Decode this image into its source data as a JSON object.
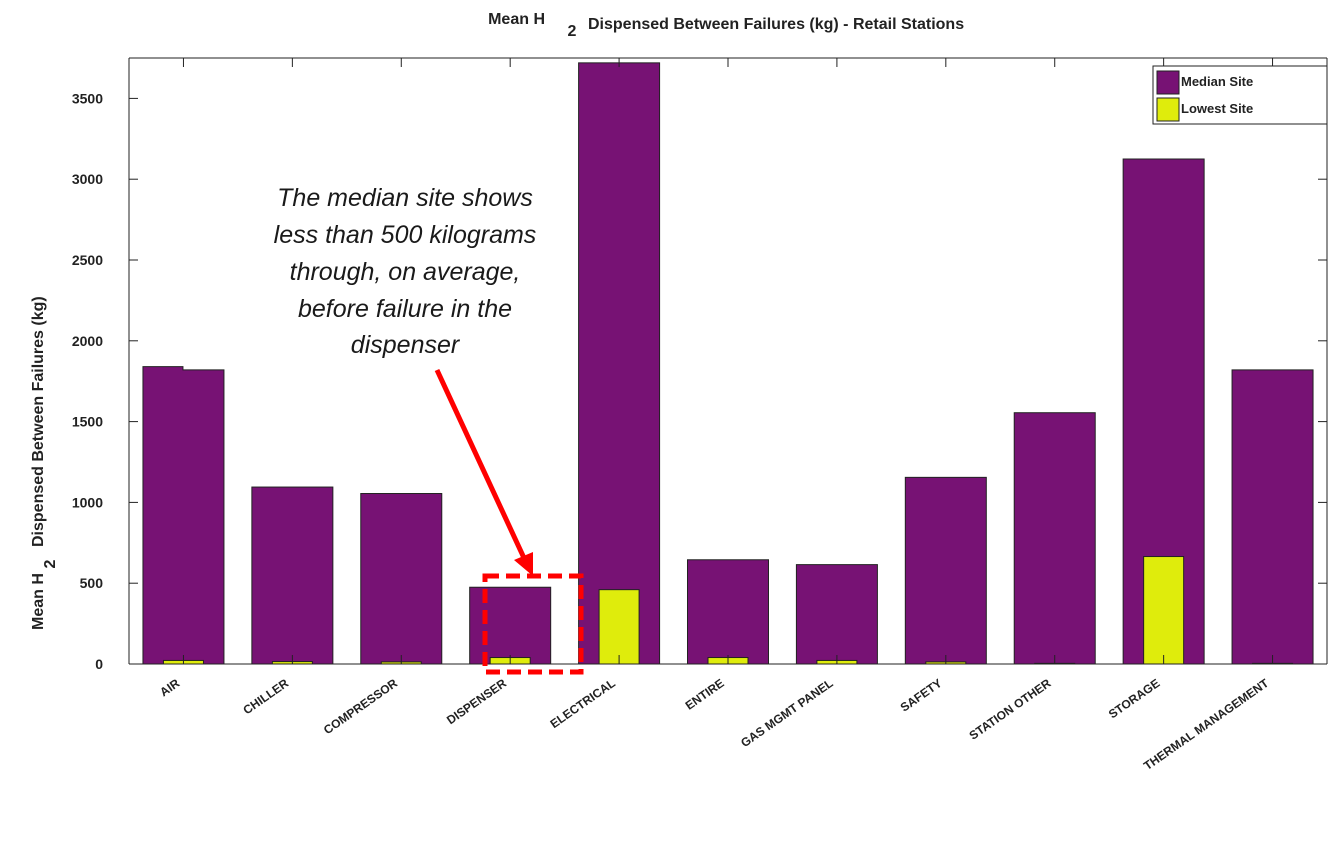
{
  "chart_data": {
    "type": "bar",
    "title_main": "Mean H",
    "title_sub": "2",
    "title_rest": "Dispensed Between Failures (kg) - Retail Stations",
    "ylabel_main": "Mean H",
    "ylabel_sub": "2",
    "ylabel_rest": "Dispensed Between Failures (kg)",
    "xlabel": "",
    "ylim": [
      0,
      3750
    ],
    "yticks": [
      "0",
      "500",
      "1000",
      "1500",
      "2000",
      "2500",
      "3000",
      "3500"
    ],
    "categories": [
      "AIR",
      "CHILLER",
      "COMPRESSOR",
      "DISPENSER",
      "ELECTRICAL",
      "ENTIRE",
      "GAS MGMT PANEL",
      "SAFETY",
      "STATION OTHER",
      "STORAGE",
      "THERMAL MANAGEMENT"
    ],
    "series": [
      {
        "name": "Median Site",
        "color": "#771274",
        "values": [
          1820,
          1095,
          1055,
          475,
          3720,
          645,
          615,
          1155,
          1555,
          3125,
          1820
        ]
      },
      {
        "name": "Lowest Site",
        "color": "#dfec0c",
        "values": [
          22,
          15,
          13,
          40,
          460,
          40,
          22,
          13,
          4,
          665,
          4
        ]
      }
    ],
    "air_median_step": 1840,
    "legend_position": "top-right",
    "grid": false,
    "annotation": {
      "lines": [
        "The median site shows",
        "less than 500 kilograms",
        "through, on average,",
        "before failure in the",
        "dispenser"
      ],
      "target_category": "DISPENSER",
      "arrow_color": "#ff0000"
    }
  }
}
